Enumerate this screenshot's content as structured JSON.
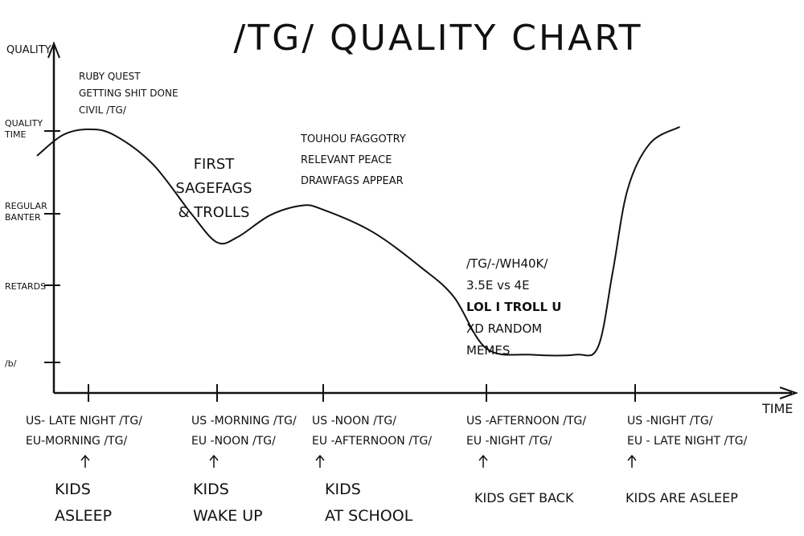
{
  "chart_data": {
    "type": "line",
    "title": "/TG/ QUALITY CHART",
    "ylabel": "QUALITY",
    "xlabel": "TIME",
    "grid": false,
    "y_ticks": [
      {
        "label": "/b/",
        "value": 1
      },
      {
        "label": "RETARDS",
        "value": 2
      },
      {
        "label": "REGULAR BANTER",
        "value": 3
      },
      {
        "label": "QUALITY TIME",
        "value": 4
      }
    ],
    "x_ticks": [
      {
        "pos": 1,
        "lines": [
          "US- LATE NIGHT /TG/",
          "EU-MORNING /TG/"
        ],
        "note": [
          "KIDS",
          "ASLEEP"
        ]
      },
      {
        "pos": 2,
        "lines": [
          "US -MORNING /TG/",
          "EU -NOON /TG/"
        ],
        "note": [
          "KIDS",
          "WAKE UP"
        ]
      },
      {
        "pos": 3,
        "lines": [
          "US -NOON /TG/",
          "EU -AFTERNOON /TG/"
        ],
        "note": [
          "KIDS",
          "AT SCHOOL"
        ]
      },
      {
        "pos": 4,
        "lines": [
          "US -AFTERNOON /TG/",
          "EU -NIGHT /TG/"
        ],
        "note": [
          "KIDS GET BACK"
        ]
      },
      {
        "pos": 5,
        "lines": [
          "US -NIGHT /TG/",
          "EU - LATE NIGHT /TG/"
        ],
        "note": [
          "KIDS ARE ASLEEP"
        ]
      }
    ],
    "series": [
      {
        "x": [
          0.6,
          0.8,
          1.0,
          1.2,
          1.5,
          1.8,
          2.0,
          2.2,
          2.5,
          2.8,
          3.0,
          3.3,
          3.6,
          3.8,
          4.0,
          4.3,
          4.6,
          4.75,
          4.85,
          4.95,
          5.1,
          5.3
        ],
        "y": [
          3.7,
          3.95,
          4.02,
          3.95,
          3.6,
          3.0,
          2.6,
          2.68,
          2.98,
          3.1,
          3.05,
          2.75,
          2.25,
          1.85,
          1.18,
          1.1,
          1.1,
          1.2,
          2.2,
          3.3,
          3.85,
          4.05
        ]
      }
    ],
    "annotations": [
      {
        "lines": [
          "RUBY QUEST",
          "GETTING SHIT DONE",
          "CIVIL /TG/"
        ]
      },
      {
        "lines": [
          "FIRST",
          "SAGEFAGS",
          "& TROLLS"
        ]
      },
      {
        "lines": [
          "TOUHOU FAGGOTRY",
          "RELEVANT PEACE",
          "DRAWFAGS APPEAR"
        ]
      },
      {
        "lines": [
          "/TG/-/WH40K/",
          "3.5E vs 4E",
          "LOL I TROLL U",
          "XD RANDOM",
          "MEMES"
        ]
      }
    ]
  }
}
